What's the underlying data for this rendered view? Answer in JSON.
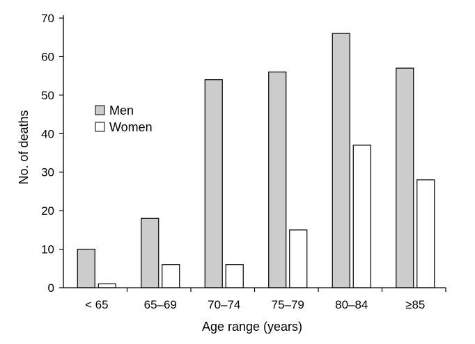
{
  "chart_data": {
    "type": "bar",
    "categories": [
      "< 65",
      "65–69",
      "70–74",
      "75–79",
      "80–84",
      "≥85"
    ],
    "series": [
      {
        "name": "Men",
        "color": "#cccccc",
        "values": [
          10,
          18,
          54,
          56,
          66,
          57
        ]
      },
      {
        "name": "Women",
        "color": "#ffffff",
        "values": [
          1,
          6,
          6,
          15,
          37,
          28
        ]
      }
    ],
    "xlabel": "Age range (years)",
    "ylabel": "No. of deaths",
    "ylim": [
      0,
      70
    ],
    "yticks": [
      0,
      10,
      20,
      30,
      40,
      50,
      60,
      70
    ],
    "grid": false,
    "legend_position": "upper-left"
  }
}
